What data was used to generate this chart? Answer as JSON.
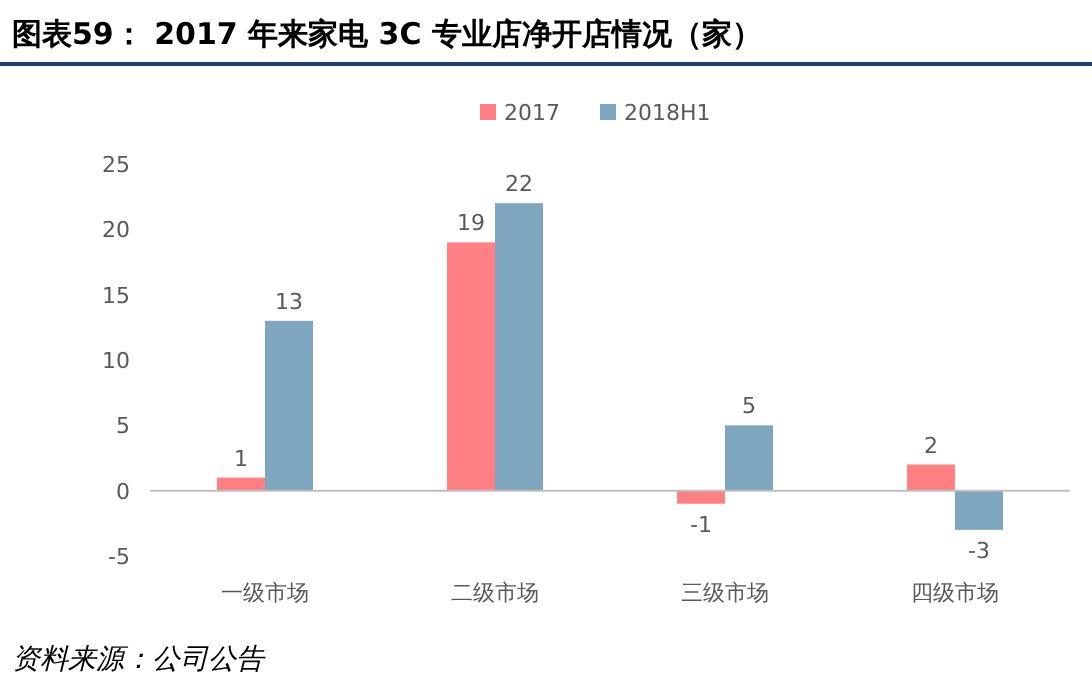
{
  "chart_data": {
    "type": "bar",
    "title": "图表59： 2017 年来家电 3C 专业店净开店情况（家）",
    "categories": [
      "一级市场",
      "二级市场",
      "三级市场",
      "四级市场"
    ],
    "series": [
      {
        "name": "2017",
        "color": "#fe8082",
        "values": [
          1,
          19,
          -1,
          2
        ]
      },
      {
        "name": "2018H1",
        "color": "#7fa6bf",
        "values": [
          13,
          22,
          5,
          -3
        ]
      }
    ],
    "ylim": [
      -5,
      25
    ],
    "yticks": [
      -5,
      0,
      5,
      10,
      15,
      20,
      25
    ],
    "data_labels": true,
    "legend": "top",
    "annotations": [
      "资料来源：公司公告"
    ]
  }
}
